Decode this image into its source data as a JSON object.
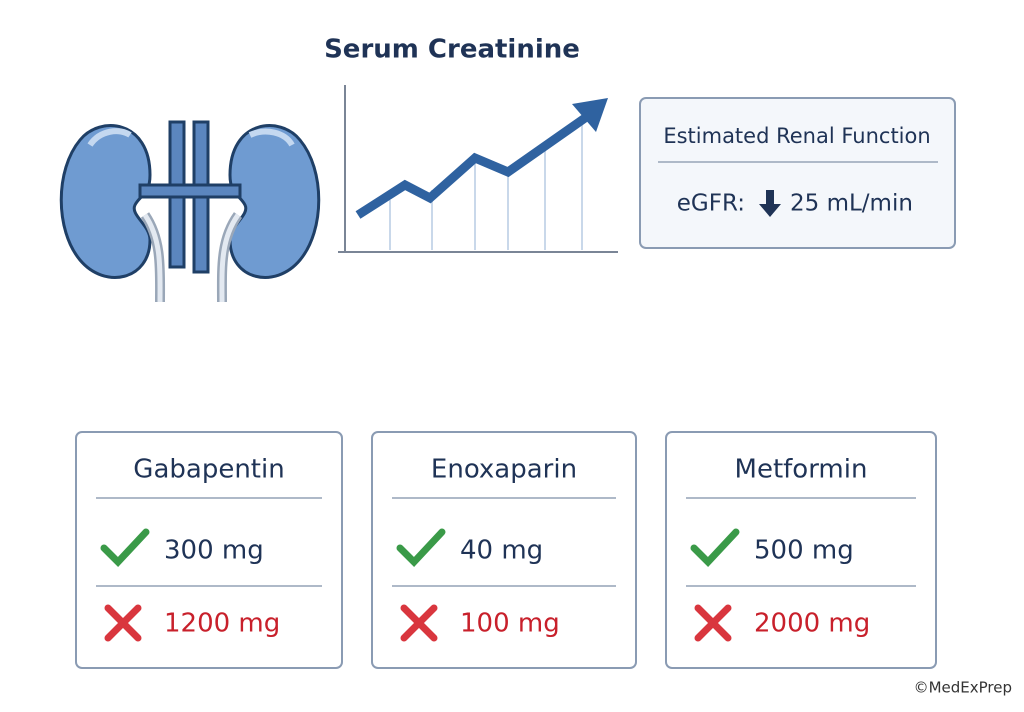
{
  "chart_title": "Serum Creatinine",
  "renal_box": {
    "title": "Estimated Renal Function",
    "egfr_label": "eGFR:",
    "egfr_value": "25 mL/min"
  },
  "drugs": [
    {
      "name": "Gabapentin",
      "safe_dose": "300 mg",
      "unsafe_dose": "1200 mg"
    },
    {
      "name": "Enoxaparin",
      "safe_dose": "40 mg",
      "unsafe_dose": "100 mg"
    },
    {
      "name": "Metformin",
      "safe_dose": "500 mg",
      "unsafe_dose": "2000 mg"
    }
  ],
  "copyright": "©MedExPrep"
}
